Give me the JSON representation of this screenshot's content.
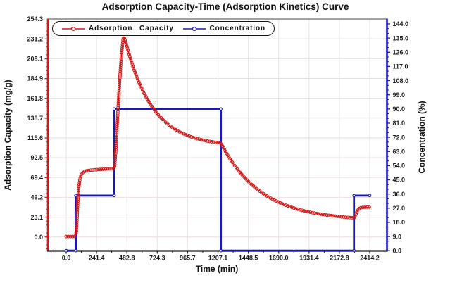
{
  "chart_data": {
    "type": "line",
    "title": "Adsorption Capacity-Time (Adsorption Kinetics) Curve",
    "xlabel": "Time (min)",
    "ylabel_left": "Adsorption Capacity (mg/g)",
    "ylabel_right": "Concentration (%)",
    "x_ticks": [
      "0.0",
      "241.4",
      "482.8",
      "724.3",
      "965.7",
      "1207.1",
      "1448.5",
      "1690.0",
      "1931.4",
      "2172.8",
      "2414.2"
    ],
    "y_left_ticks": [
      "0.0",
      "23.1",
      "46.2",
      "69.4",
      "92.5",
      "115.6",
      "138.7",
      "161.8",
      "184.9",
      "208.1",
      "231.2",
      "254.3"
    ],
    "y_right_ticks": [
      "0.0",
      "9.0",
      "18.0",
      "27.0",
      "36.0",
      "45.0",
      "54.0",
      "63.0",
      "72.0",
      "81.0",
      "90.0",
      "99.0",
      "108.0",
      "117.0",
      "126.0",
      "135.0",
      "144.0"
    ],
    "x_range": [
      -146,
      2550
    ],
    "y_left_range": [
      -16.2,
      254.3
    ],
    "y_right_range": [
      0,
      144
    ],
    "grid": true,
    "legend_position": "top-left",
    "colors": {
      "capacity_red": "#cd1a1a",
      "concentration_blue": "#1a18b4",
      "axis_black": "#1a1a1a",
      "grid_horizontal": "#ecdede",
      "grid_vertical": "#e4e4e4"
    },
    "series": [
      {
        "name": "Adsorption Capacity",
        "color": "#cd1a1a",
        "axis": "left",
        "marker": "circle",
        "points": [
          [
            0,
            0.5
          ],
          [
            20,
            0.5
          ],
          [
            40,
            0.5
          ],
          [
            58,
            0.5
          ],
          [
            70,
            0.6
          ],
          [
            75,
            1
          ],
          [
            78,
            3
          ],
          [
            81,
            8
          ],
          [
            84,
            15
          ],
          [
            87,
            24
          ],
          [
            90,
            33
          ],
          [
            93,
            42
          ],
          [
            96,
            50
          ],
          [
            100,
            57
          ],
          [
            104,
            62.5
          ],
          [
            109,
            67
          ],
          [
            115,
            70.5
          ],
          [
            122,
            73
          ],
          [
            130,
            74.8
          ],
          [
            140,
            76
          ],
          [
            152,
            76.8
          ],
          [
            166,
            77.3
          ],
          [
            182,
            77.7
          ],
          [
            200,
            78
          ],
          [
            220,
            78.3
          ],
          [
            242,
            78.5
          ],
          [
            265,
            78.8
          ],
          [
            290,
            79
          ],
          [
            315,
            79.2
          ],
          [
            340,
            79.4
          ],
          [
            362,
            79.5
          ],
          [
            378,
            79.6
          ],
          [
            383,
            81
          ],
          [
            386,
            84
          ],
          [
            389,
            89
          ],
          [
            392,
            95
          ],
          [
            395,
            102
          ],
          [
            398,
            110
          ],
          [
            402,
            121
          ],
          [
            406,
            132
          ],
          [
            410,
            143
          ],
          [
            414,
            154
          ],
          [
            418,
            164
          ],
          [
            422,
            174
          ],
          [
            426,
            184
          ],
          [
            430,
            193
          ],
          [
            434,
            201
          ],
          [
            438,
            209
          ],
          [
            442,
            216
          ],
          [
            446,
            222
          ],
          [
            449,
            226
          ],
          [
            452,
            229.5
          ],
          [
            455,
            232
          ],
          [
            458,
            233
          ],
          [
            461,
            232.6
          ],
          [
            464,
            231
          ],
          [
            470,
            229.5
          ],
          [
            480,
            223.9
          ],
          [
            490,
            218.5
          ],
          [
            500,
            213.4
          ],
          [
            515,
            206.2
          ],
          [
            530,
            199.4
          ],
          [
            545,
            193.1
          ],
          [
            560,
            187.3
          ],
          [
            580,
            180.1
          ],
          [
            600,
            173.5
          ],
          [
            620,
            167.5
          ],
          [
            645,
            160.7
          ],
          [
            670,
            154.7
          ],
          [
            700,
            148.4
          ],
          [
            730,
            142.9
          ],
          [
            765,
            137.3
          ],
          [
            800,
            132.6
          ],
          [
            840,
            128.1
          ],
          [
            880,
            124.4
          ],
          [
            925,
            120.9
          ],
          [
            970,
            118.1
          ],
          [
            1020,
            115.6
          ],
          [
            1070,
            113.6
          ],
          [
            1120,
            112
          ],
          [
            1170,
            110.8
          ],
          [
            1230,
            109.6
          ],
          [
            1245,
            105.5
          ],
          [
            1265,
            100.2
          ],
          [
            1285,
            95.3
          ],
          [
            1310,
            89.6
          ],
          [
            1335,
            84.3
          ],
          [
            1365,
            78.4
          ],
          [
            1395,
            73.1
          ],
          [
            1430,
            67.5
          ],
          [
            1465,
            62.4
          ],
          [
            1505,
            57.3
          ],
          [
            1545,
            52.9
          ],
          [
            1590,
            48.4
          ],
          [
            1635,
            44.5
          ],
          [
            1685,
            40.9
          ],
          [
            1735,
            37.7
          ],
          [
            1790,
            34.7
          ],
          [
            1845,
            32.2
          ],
          [
            1905,
            30
          ],
          [
            1965,
            28.1
          ],
          [
            2030,
            26.4
          ],
          [
            2095,
            25.1
          ],
          [
            2160,
            23.9
          ],
          [
            2225,
            23
          ],
          [
            2289,
            22.2
          ],
          [
            2295,
            23.5
          ],
          [
            2302,
            25.5
          ],
          [
            2309,
            28
          ],
          [
            2316,
            30.5
          ],
          [
            2324,
            32.5
          ],
          [
            2334,
            33.7
          ],
          [
            2348,
            34.3
          ],
          [
            2368,
            34.6
          ],
          [
            2390,
            34.8
          ],
          [
            2414,
            34.8
          ]
        ]
      },
      {
        "name": "Concentration",
        "color": "#1a18b4",
        "axis": "right",
        "marker": "circle",
        "points": [
          [
            0,
            0
          ],
          [
            76,
            0
          ],
          [
            76,
            35
          ],
          [
            382,
            35
          ],
          [
            382,
            90
          ],
          [
            1230,
            90
          ],
          [
            1230,
            0
          ],
          [
            2289,
            0
          ],
          [
            2289,
            35
          ],
          [
            2414,
            35
          ]
        ]
      }
    ]
  }
}
